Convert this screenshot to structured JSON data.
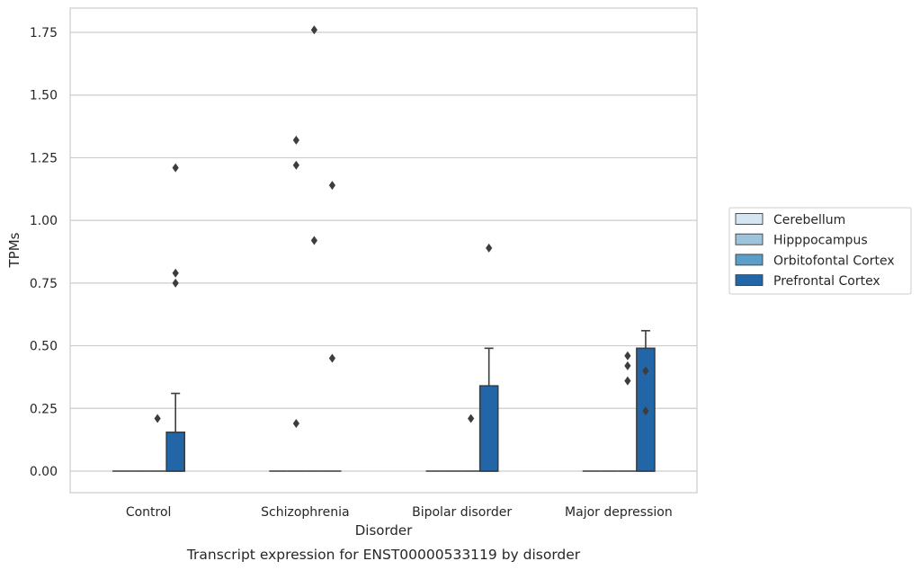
{
  "chart_data": {
    "type": "box",
    "caption": "Transcript expression for ENST00000533119 by disorder",
    "xlabel": "Disorder",
    "ylabel": "TPMs",
    "ylim": [
      -0.085,
      1.85
    ],
    "yticks": [
      "0.00",
      "0.25",
      "0.50",
      "0.75",
      "1.00",
      "1.25",
      "1.50",
      "1.75"
    ],
    "grid": true,
    "legend_position": "right",
    "categories": [
      "Control",
      "Schizophrenia",
      "Bipolar disorder",
      "Major depression"
    ],
    "series": [
      {
        "name": "Cerebellum",
        "color": "#d6e5f2",
        "boxes": [
          {
            "q1": 0,
            "median": 0,
            "q3": 0,
            "whisker_low": 0,
            "whisker_high": 0,
            "outliers": []
          },
          {
            "q1": 0,
            "median": 0,
            "q3": 0,
            "whisker_low": 0,
            "whisker_high": 0,
            "outliers": []
          },
          {
            "q1": 0,
            "median": 0,
            "q3": 0,
            "whisker_low": 0,
            "whisker_high": 0,
            "outliers": []
          },
          {
            "q1": 0,
            "median": 0,
            "q3": 0,
            "whisker_low": 0,
            "whisker_high": 0,
            "outliers": []
          }
        ]
      },
      {
        "name": "Hipppocampus",
        "color": "#9dc3dd",
        "boxes": [
          {
            "q1": 0,
            "median": 0,
            "q3": 0,
            "whisker_low": 0,
            "whisker_high": 0,
            "outliers": []
          },
          {
            "q1": 0,
            "median": 0,
            "q3": 0,
            "whisker_low": 0,
            "whisker_high": 0,
            "outliers": [
              0.19,
              1.22,
              1.32
            ]
          },
          {
            "q1": 0,
            "median": 0,
            "q3": 0,
            "whisker_low": 0,
            "whisker_high": 0,
            "outliers": []
          },
          {
            "q1": 0,
            "median": 0,
            "q3": 0,
            "whisker_low": 0,
            "whisker_high": 0,
            "outliers": []
          }
        ]
      },
      {
        "name": "Orbitofontal Cortex",
        "color": "#5a9ec9",
        "boxes": [
          {
            "q1": 0,
            "median": 0,
            "q3": 0,
            "whisker_low": 0,
            "whisker_high": 0,
            "outliers": [
              0.21
            ]
          },
          {
            "q1": 0,
            "median": 0,
            "q3": 0,
            "whisker_low": 0,
            "whisker_high": 0,
            "outliers": [
              0.92,
              1.76
            ]
          },
          {
            "q1": 0,
            "median": 0,
            "q3": 0,
            "whisker_low": 0,
            "whisker_high": 0,
            "outliers": [
              0.21
            ]
          },
          {
            "q1": 0,
            "median": 0,
            "q3": 0,
            "whisker_low": 0,
            "whisker_high": 0,
            "outliers": [
              0.36,
              0.46,
              0.42
            ]
          }
        ]
      },
      {
        "name": "Prefrontal Cortex",
        "color": "#2366a8",
        "boxes": [
          {
            "q1": 0,
            "median": 0,
            "q3": 0.155,
            "whisker_low": 0,
            "whisker_high": 0.31,
            "outliers": [
              0.75,
              0.79,
              1.21
            ]
          },
          {
            "q1": 0,
            "median": 0,
            "q3": 0,
            "whisker_low": 0,
            "whisker_high": 0,
            "outliers": [
              0.45,
              1.14
            ]
          },
          {
            "q1": 0,
            "median": 0,
            "q3": 0.34,
            "whisker_low": 0,
            "whisker_high": 0.49,
            "outliers": [
              0.89
            ]
          },
          {
            "q1": 0,
            "median": 0,
            "q3": 0.49,
            "whisker_low": 0,
            "whisker_high": 0.56,
            "outliers": [
              0.24,
              0.4
            ]
          }
        ]
      }
    ]
  }
}
